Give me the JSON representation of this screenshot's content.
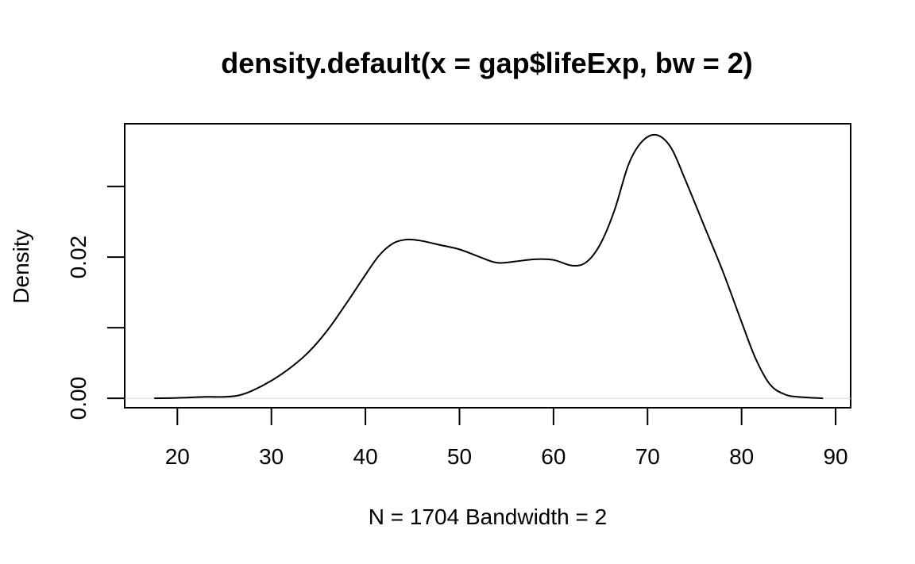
{
  "chart_data": {
    "type": "line",
    "title": "density.default(x = gap$lifeExp, bw = 2)",
    "xlabel": "N = 1704   Bandwidth = 2",
    "ylabel": "Density",
    "xlim": [
      14.4,
      91.6
    ],
    "ylim": [
      -0.00134,
      0.0389
    ],
    "x_ticks": [
      20,
      30,
      40,
      50,
      60,
      70,
      80,
      90
    ],
    "x_tick_labels": [
      "20",
      "30",
      "40",
      "50",
      "60",
      "70",
      "80",
      "90"
    ],
    "y_ticks": [
      0,
      0.01,
      0.02,
      0.03
    ],
    "y_tick_labels": [
      "0.00",
      "",
      "0.02",
      ""
    ],
    "grid": false,
    "zero_line": true,
    "series": [
      {
        "x": [
          17.6,
          20,
          23,
          25,
          26.5,
          28,
          30,
          32,
          34,
          36,
          38,
          40,
          41.5,
          43,
          44.5,
          46,
          48,
          50,
          52,
          54,
          56,
          58,
          60,
          62,
          63.5,
          65,
          66.5,
          68,
          69.5,
          71,
          72.5,
          74,
          76,
          78,
          80,
          81.5,
          83,
          84.5,
          86,
          88.6
        ],
        "y": [
          0.0,
          5e-05,
          0.0002,
          0.0002,
          0.0004,
          0.0011,
          0.0025,
          0.0043,
          0.0066,
          0.0097,
          0.0135,
          0.0175,
          0.0203,
          0.022,
          0.0225,
          0.0223,
          0.0217,
          0.0211,
          0.0201,
          0.0192,
          0.0194,
          0.0197,
          0.0196,
          0.0188,
          0.0193,
          0.0219,
          0.0267,
          0.0332,
          0.0365,
          0.0373,
          0.0355,
          0.031,
          0.0245,
          0.018,
          0.0108,
          0.0056,
          0.002,
          0.0006,
          0.0002,
          0.0
        ]
      }
    ]
  }
}
